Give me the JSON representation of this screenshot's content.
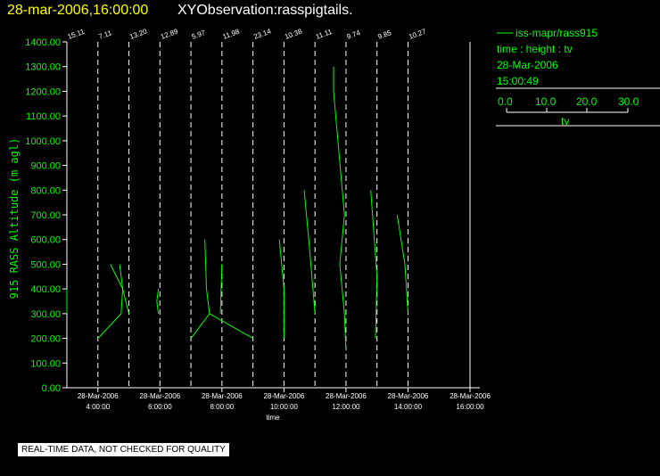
{
  "title": {
    "datetime": "28-mar-2006,16:00:00",
    "observation": "XYObservation:rasspigtails."
  },
  "legend": {
    "series_name": "iss-mapr/rass915",
    "line2": "time : height : tv",
    "line3": "28-Mar-2006",
    "line4": "15:00:49",
    "colorbar_ticks": [
      "0.0",
      "10.0",
      "20.0",
      "30.0"
    ],
    "colorbar_label": "tv"
  },
  "footer": {
    "quality_note": "REAL-TIME DATA, NOT CHECKED FOR QUALITY"
  },
  "colors": {
    "background": "#000000",
    "data": "#00ff00",
    "axes": "#ffffff",
    "title_date": "#ffff00"
  },
  "chart_data": {
    "type": "line",
    "ylabel": "915 RASS Altitude (m agl)",
    "xlabel": "time",
    "ylim": [
      0,
      1400
    ],
    "xlim": [
      3,
      16
    ],
    "yticks": [
      "0.00",
      "100.00",
      "200.00",
      "300.00",
      "400.00",
      "500.00",
      "600.00",
      "700.00",
      "800.00",
      "900.00",
      "1000.00",
      "1100.00",
      "1200.00",
      "1300.00",
      "1400.00"
    ],
    "xticks": [
      {
        "x": 4,
        "date": "28-Mar-2006",
        "time": "4:00:00"
      },
      {
        "x": 6,
        "date": "28-Mar-2006",
        "time": "6:00:00"
      },
      {
        "x": 8,
        "date": "28-Mar-2006",
        "time": "8:00:00"
      },
      {
        "x": 10,
        "date": "28-Mar-2006",
        "time": "10:00:00"
      },
      {
        "x": 12,
        "date": "28-Mar-2006",
        "time": "12:00:00"
      },
      {
        "x": 14,
        "date": "28-Mar-2006",
        "time": "14:00:00"
      },
      {
        "x": 16,
        "date": "28-Mar-2006",
        "time": "16:00:00"
      }
    ],
    "profiles": [
      {
        "base_time": 3.0,
        "label": "15.11"
      },
      {
        "base_time": 4.0,
        "label": "7.11"
      },
      {
        "base_time": 5.0,
        "label": "13.20"
      },
      {
        "base_time": 6.0,
        "label": "12.89"
      },
      {
        "base_time": 7.0,
        "label": "5.97"
      },
      {
        "base_time": 8.0,
        "label": "11.98"
      },
      {
        "base_time": 9.0,
        "label": "23.14"
      },
      {
        "base_time": 10.0,
        "label": "10.38"
      },
      {
        "base_time": 11.0,
        "label": "11.11"
      },
      {
        "base_time": 12.0,
        "label": "9.74"
      },
      {
        "base_time": 13.0,
        "label": "9.85"
      },
      {
        "base_time": 14.0,
        "label": "10.27"
      }
    ],
    "series": [
      {
        "points": [
          [
            3.0,
            400
          ],
          [
            3.0,
            300
          ]
        ]
      },
      {
        "points": [
          [
            4.0,
            200
          ],
          [
            4.75,
            300
          ],
          [
            4.8,
            400
          ],
          [
            4.4,
            500
          ]
        ]
      },
      {
        "points": [
          [
            4.7,
            500
          ],
          [
            4.8,
            400
          ],
          [
            5.0,
            300
          ]
        ]
      },
      {
        "points": [
          [
            5.95,
            400
          ],
          [
            5.9,
            350
          ],
          [
            5.95,
            300
          ]
        ]
      },
      {
        "points": [
          [
            7.0,
            200
          ],
          [
            7.6,
            300
          ],
          [
            7.5,
            400
          ],
          [
            7.45,
            600
          ]
        ]
      },
      {
        "points": [
          [
            7.6,
            300
          ],
          [
            9.0,
            200
          ]
        ]
      },
      {
        "points": [
          [
            8.0,
            500
          ],
          [
            7.95,
            300
          ]
        ]
      },
      {
        "points": [
          [
            9.85,
            600
          ],
          [
            10.0,
            400
          ],
          [
            10.0,
            200
          ]
        ]
      },
      {
        "points": [
          [
            10.65,
            800
          ],
          [
            10.8,
            600
          ],
          [
            11.0,
            300
          ]
        ]
      },
      {
        "points": [
          [
            11.6,
            1300
          ],
          [
            11.6,
            1200
          ],
          [
            11.95,
            700
          ],
          [
            11.8,
            500
          ],
          [
            11.95,
            300
          ],
          [
            12.0,
            150
          ]
        ]
      },
      {
        "points": [
          [
            12.8,
            800
          ],
          [
            13.0,
            450
          ],
          [
            12.95,
            200
          ]
        ]
      },
      {
        "points": [
          [
            13.65,
            700
          ],
          [
            13.9,
            500
          ],
          [
            14.0,
            300
          ]
        ]
      }
    ]
  }
}
